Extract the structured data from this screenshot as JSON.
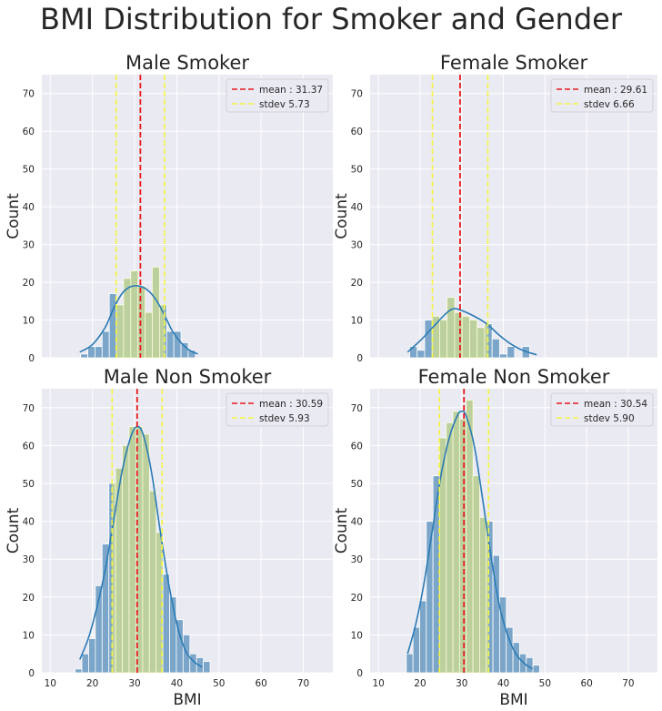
{
  "figure": {
    "title": "BMI Distribution for Smoker and Gender"
  },
  "colors": {
    "background": "#eaeaf2",
    "grid": "#ffffff",
    "bar": "#7ba6c9",
    "bar_edge": "#ffffff",
    "kde": "#2b7bb5",
    "band_fill": "#f2f27a",
    "mean_line": "#e8191c",
    "stdev_line": "#f5f542"
  },
  "chart_data": [
    {
      "type": "bar",
      "title": "Male Smoker",
      "xlabel": "",
      "ylabel": "Count",
      "xlim": [
        8,
        77
      ],
      "ylim": [
        0,
        75
      ],
      "xticks": [
        10,
        20,
        30,
        40,
        50,
        60,
        70
      ],
      "yticks": [
        0,
        10,
        20,
        30,
        40,
        50,
        60,
        70
      ],
      "show_xticklabels": false,
      "grid": true,
      "legend_position": "top-right",
      "mean": 31.37,
      "stdev": 5.73,
      "legend": [
        "mean : 31.37",
        "stdev 5.73"
      ],
      "bin_edges": [
        17.2,
        18.9,
        20.6,
        22.3,
        24.0,
        25.7,
        27.4,
        29.1,
        30.8,
        32.5,
        34.2,
        35.9,
        37.6,
        39.3,
        41.0,
        42.7,
        44.4,
        46.1
      ],
      "values": [
        1,
        3,
        3,
        7,
        17,
        14,
        21,
        23,
        19,
        12,
        24,
        14,
        7,
        7,
        4,
        2,
        0
      ],
      "kde_x": [
        17,
        20,
        23,
        25,
        27,
        29,
        31,
        33,
        35,
        37,
        39,
        41,
        43,
        45
      ],
      "kde_y": [
        1.5,
        3.5,
        8,
        13,
        17,
        18.8,
        19,
        18,
        15.5,
        11.5,
        7,
        4,
        2,
        1
      ]
    },
    {
      "type": "bar",
      "title": "Female Smoker",
      "xlabel": "",
      "ylabel": "Count",
      "xlim": [
        8,
        77
      ],
      "ylim": [
        0,
        75
      ],
      "xticks": [
        10,
        20,
        30,
        40,
        50,
        60,
        70
      ],
      "yticks": [
        0,
        10,
        20,
        30,
        40,
        50,
        60,
        70
      ],
      "show_xticklabels": false,
      "grid": true,
      "legend_position": "top-right",
      "mean": 29.61,
      "stdev": 6.66,
      "legend": [
        "mean : 29.61",
        "stdev 6.66"
      ],
      "bin_edges": [
        17.5,
        19.3,
        21.1,
        22.9,
        24.7,
        26.5,
        28.3,
        30.1,
        31.9,
        33.7,
        35.5,
        37.3,
        39.1,
        40.9,
        42.7,
        44.5,
        46.3,
        48.1
      ],
      "values": [
        3,
        2,
        10,
        11,
        10,
        16,
        12,
        11,
        10,
        8,
        9,
        5,
        1,
        3,
        0,
        3,
        0
      ],
      "kde_x": [
        17,
        20,
        23,
        26,
        28,
        30,
        33,
        36,
        39,
        42,
        45,
        48
      ],
      "kde_y": [
        1.5,
        4.5,
        8,
        11.5,
        13,
        12.5,
        11,
        9,
        6,
        3.5,
        1.8,
        0.8
      ]
    },
    {
      "type": "bar",
      "title": "Male Non Smoker",
      "xlabel": "BMI",
      "ylabel": "Count",
      "xlim": [
        8,
        77
      ],
      "ylim": [
        0,
        75
      ],
      "xticks": [
        10,
        20,
        30,
        40,
        50,
        60,
        70
      ],
      "yticks": [
        0,
        10,
        20,
        30,
        40,
        50,
        60,
        70
      ],
      "show_xticklabels": true,
      "grid": true,
      "legend_position": "top-right",
      "mean": 30.59,
      "stdev": 5.93,
      "legend": [
        "mean : 30.59",
        "stdev 5.93"
      ],
      "bin_edges": [
        15.9,
        17.5,
        19.1,
        20.7,
        22.3,
        23.9,
        25.5,
        27.1,
        28.7,
        30.3,
        31.9,
        33.5,
        35.1,
        36.7,
        38.3,
        39.9,
        41.5,
        43.1,
        44.7,
        46.3,
        47.9
      ],
      "values": [
        1,
        5,
        9,
        23,
        34,
        50,
        54,
        60,
        65,
        65,
        63,
        48,
        37,
        26,
        20,
        14,
        10,
        5,
        4,
        3
      ],
      "kde_x": [
        17,
        19,
        21,
        23,
        25,
        27,
        29,
        30.5,
        32,
        34,
        36,
        38,
        40,
        42,
        44,
        46
      ],
      "kde_y": [
        3.5,
        9,
        17,
        27,
        40,
        53,
        62,
        65,
        63,
        53,
        38,
        24,
        13,
        6,
        3,
        1.5
      ]
    },
    {
      "type": "bar",
      "title": "Female Non Smoker",
      "xlabel": "BMI",
      "ylabel": "Count",
      "xlim": [
        8,
        77
      ],
      "ylim": [
        0,
        75
      ],
      "xticks": [
        10,
        20,
        30,
        40,
        50,
        60,
        70
      ],
      "yticks": [
        0,
        10,
        20,
        30,
        40,
        50,
        60,
        70
      ],
      "show_xticklabels": true,
      "grid": true,
      "legend_position": "top-right",
      "mean": 30.54,
      "stdev": 5.9,
      "legend": [
        "mean : 30.54",
        "stdev 5.90"
      ],
      "bin_edges": [
        16.7,
        18.3,
        19.9,
        21.5,
        23.1,
        24.7,
        26.3,
        27.9,
        29.5,
        31.1,
        32.7,
        34.3,
        35.9,
        37.5,
        39.1,
        40.7,
        42.3,
        43.9,
        45.5,
        47.1,
        48.7
      ],
      "values": [
        5,
        12,
        19,
        40,
        52,
        62,
        66,
        69,
        67,
        72,
        52,
        41,
        40,
        31,
        20,
        12,
        8,
        5,
        4,
        2
      ],
      "kde_x": [
        17,
        19,
        21,
        23,
        25,
        27,
        29,
        30,
        31,
        33,
        35,
        37,
        39,
        41,
        43,
        45,
        47
      ],
      "kde_y": [
        5,
        13,
        24,
        38,
        52,
        62,
        68,
        69,
        68,
        60,
        46,
        31,
        18,
        10,
        5,
        2.5,
        1
      ]
    }
  ]
}
